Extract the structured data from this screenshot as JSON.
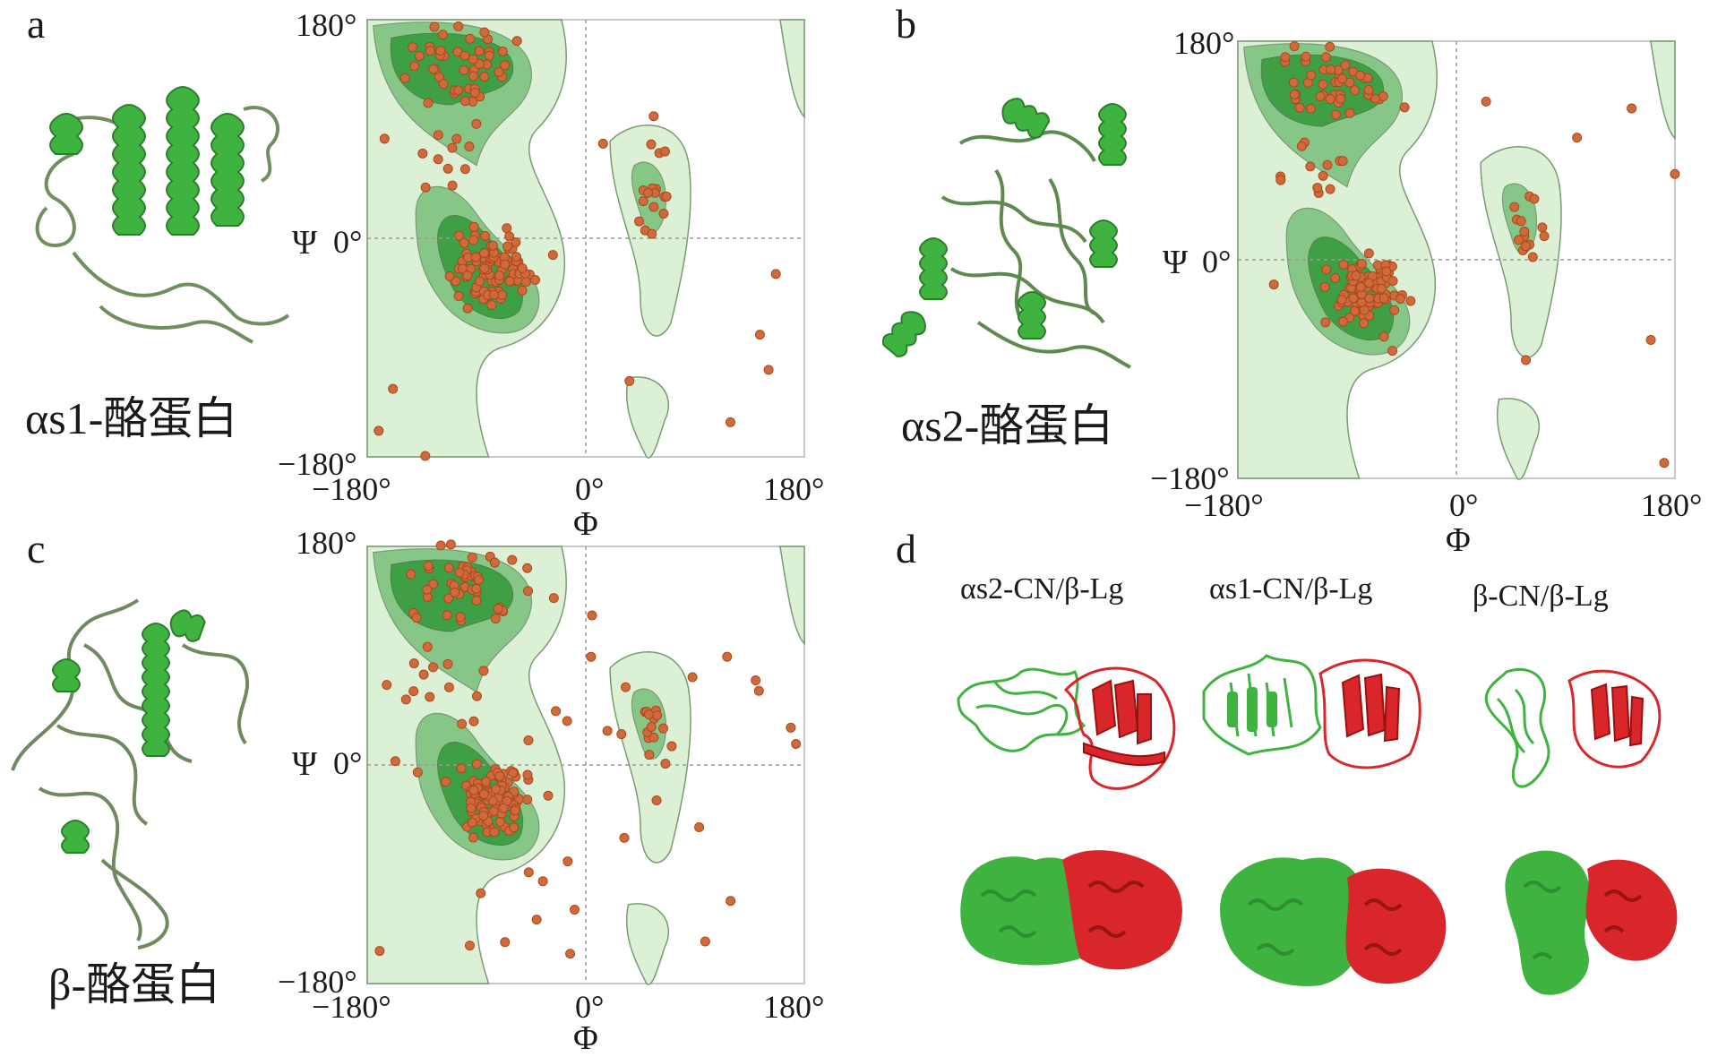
{
  "panels": {
    "a": {
      "letter": "a",
      "protein_label": "αs1-酪蛋白",
      "ylabel": "Ψ",
      "xlabel": "Φ",
      "y_ticks": [
        "180°",
        "0°",
        "−180°"
      ],
      "x_ticks": [
        "−180°",
        "0°",
        "180°"
      ]
    },
    "b": {
      "letter": "b",
      "protein_label": "αs2-酪蛋白",
      "ylabel": "Ψ",
      "xlabel": "Φ",
      "y_ticks": [
        "180°",
        "0°",
        "−180°"
      ],
      "x_ticks": [
        "−180°",
        "0°",
        "180°"
      ]
    },
    "c": {
      "letter": "c",
      "protein_label": "β-酪蛋白",
      "ylabel": "Ψ",
      "xlabel": "Φ",
      "y_ticks": [
        "180°",
        "0°",
        "−180°"
      ],
      "x_ticks": [
        "−180°",
        "0°",
        "180°"
      ]
    },
    "d": {
      "letter": "d",
      "complexes": [
        "αs2-CN/β-Lg",
        "αs1-CN/β-Lg",
        "β-CN/β-Lg"
      ]
    }
  },
  "colors": {
    "favored_dark": "#3f9f45",
    "favored_mid": "#86c686",
    "allowed_light": "#dcf0d6",
    "contour_line": "#7a9a74",
    "residue_point": "#d06a3a",
    "casein_green": "#3fb33f",
    "lactoglobulin_red": "#d8262a"
  }
}
